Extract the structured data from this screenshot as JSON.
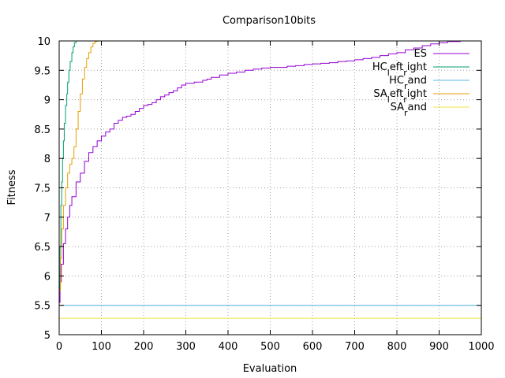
{
  "chart_data": {
    "type": "line",
    "title": "Comparison10bits",
    "xlabel": "Evaluation",
    "ylabel": "Fitness",
    "xlim": [
      0,
      1000
    ],
    "ylim": [
      5,
      10
    ],
    "x_ticks": [
      0,
      100,
      200,
      300,
      400,
      500,
      600,
      700,
      800,
      900,
      1000
    ],
    "y_ticks": [
      5,
      5.5,
      6,
      6.5,
      7,
      7.5,
      8,
      8.5,
      9,
      9.5,
      10
    ],
    "x_tick_labels": [
      "0",
      "100",
      "200",
      "300",
      "400",
      "500",
      "600",
      "700",
      "800",
      "900",
      "1000"
    ],
    "y_tick_labels": [
      "5",
      "5.5",
      "6",
      "6.5",
      "7",
      "7.5",
      "8",
      "8.5",
      "9",
      "9.5",
      "10"
    ],
    "grid": true,
    "legend_position": "top-right",
    "series": [
      {
        "name": "ES",
        "color": "#9400d3",
        "x": [
          0,
          2,
          5,
          10,
          15,
          20,
          25,
          30,
          40,
          50,
          60,
          70,
          80,
          90,
          100,
          110,
          120,
          130,
          140,
          150,
          160,
          170,
          180,
          190,
          200,
          210,
          220,
          230,
          240,
          250,
          260,
          270,
          280,
          290,
          300,
          320,
          340,
          350,
          360,
          380,
          400,
          420,
          440,
          460,
          480,
          500,
          540,
          560,
          580,
          600,
          620,
          640,
          660,
          680,
          700,
          720,
          740,
          760,
          780,
          800,
          820,
          840,
          860,
          880,
          900,
          920,
          950
        ],
        "values": [
          5.55,
          5.9,
          6.2,
          6.55,
          6.8,
          7.0,
          7.2,
          7.35,
          7.6,
          7.75,
          7.95,
          8.1,
          8.2,
          8.3,
          8.38,
          8.45,
          8.5,
          8.6,
          8.65,
          8.7,
          8.72,
          8.75,
          8.8,
          8.85,
          8.9,
          8.92,
          8.95,
          9.0,
          9.05,
          9.08,
          9.12,
          9.15,
          9.2,
          9.25,
          9.28,
          9.3,
          9.33,
          9.35,
          9.38,
          9.42,
          9.45,
          9.47,
          9.5,
          9.52,
          9.54,
          9.55,
          9.57,
          9.58,
          9.6,
          9.61,
          9.62,
          9.63,
          9.65,
          9.66,
          9.68,
          9.7,
          9.72,
          9.75,
          9.78,
          9.8,
          9.85,
          9.88,
          9.92,
          9.95,
          9.97,
          9.99,
          10.0
        ]
      },
      {
        "name": "HC_left_right",
        "color": "#009e73",
        "x": [
          0,
          2,
          4,
          6,
          8,
          10,
          12,
          15,
          18,
          20,
          23,
          26,
          30,
          33,
          36,
          40
        ],
        "values": [
          5.8,
          6.5,
          7.2,
          7.6,
          8.0,
          8.3,
          8.6,
          8.9,
          9.1,
          9.3,
          9.5,
          9.65,
          9.8,
          9.9,
          9.97,
          10.0
        ]
      },
      {
        "name": "HC_rand",
        "color": "#56b4e9",
        "x": [
          0,
          1000
        ],
        "values": [
          5.5,
          5.5
        ]
      },
      {
        "name": "SA_left_right",
        "color": "#e69f00",
        "x": [
          0,
          3,
          6,
          10,
          15,
          20,
          25,
          30,
          35,
          40,
          45,
          50,
          55,
          60,
          65,
          70,
          75,
          80,
          85,
          90
        ],
        "values": [
          5.75,
          6.3,
          6.8,
          7.2,
          7.5,
          7.75,
          7.9,
          8.0,
          8.2,
          8.5,
          8.8,
          9.1,
          9.35,
          9.55,
          9.7,
          9.8,
          9.9,
          9.96,
          9.99,
          10.0
        ]
      },
      {
        "name": "SA_rand",
        "color": "#f0e442",
        "x": [
          0,
          1000
        ],
        "values": [
          5.28,
          5.28
        ]
      }
    ]
  }
}
